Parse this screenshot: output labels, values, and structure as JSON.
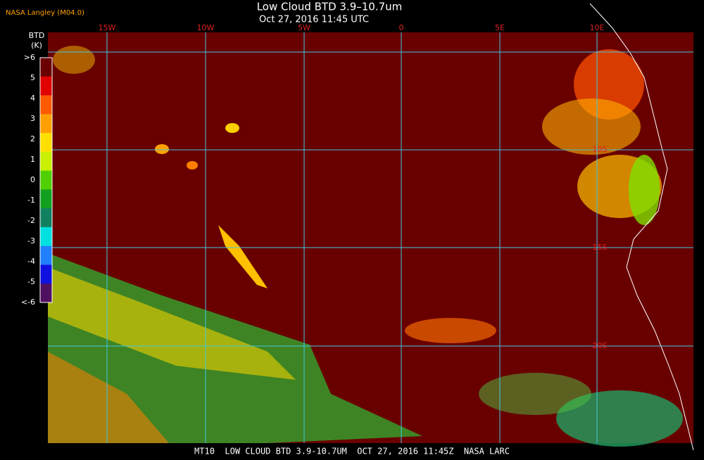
{
  "header": {
    "source": "NASA Langley (M04.0)",
    "title": "Low Cloud BTD 3.9–10.7um",
    "timestamp": "Oct 27, 2016 11:45 UTC"
  },
  "colorbar": {
    "title": "BTD",
    "unit": "(K)",
    "labels": [
      ">6",
      "5",
      "4",
      "3",
      "2",
      "1",
      "0",
      "-1",
      "-2",
      "-3",
      "-4",
      "-5",
      "<-6"
    ],
    "colors": [
      "#6b0000",
      "#e00000",
      "#ff5a00",
      "#ffa000",
      "#ffe000",
      "#c8f000",
      "#50d000",
      "#10a020",
      "#108060",
      "#00e0e0",
      "#2080ff",
      "#1010e0",
      "#501060"
    ]
  },
  "grid": {
    "longitudes": [
      "15W",
      "10W",
      "5W",
      "0",
      "5E",
      "10E"
    ],
    "latitudes": [
      "10S",
      "15S",
      "20S"
    ]
  },
  "footer": "MT10  LOW CLOUD BTD 3.9-10.7UM  OCT 27, 2016 11:45Z  NASA LARC"
}
